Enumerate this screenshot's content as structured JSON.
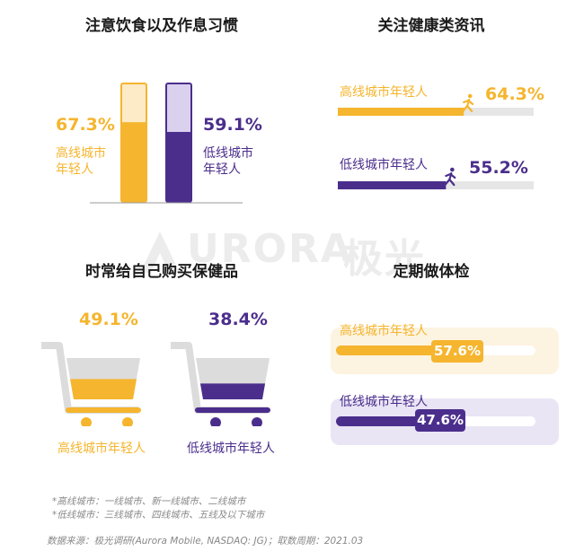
{
  "watermark": {
    "brand": "URORA",
    "cn": "极光"
  },
  "colors": {
    "orange": "#f5b52e",
    "orange_light": "#fdebc8",
    "purple": "#4b2e8c",
    "purple_light": "#d9d1ee",
    "track": "#e6e6e6"
  },
  "panels": {
    "diet": {
      "title": "注意饮食以及作息习惯"
    },
    "news": {
      "title": "关注健康类资讯"
    },
    "supplements": {
      "title": "时常给自己购买保健品"
    },
    "checkup": {
      "title": "定期做体检"
    }
  },
  "chart_data": [
    {
      "type": "bar",
      "title": "注意饮食以及作息习惯",
      "series": [
        {
          "name": "高线城市年轻人",
          "value": 67.3,
          "label": "67.3%"
        },
        {
          "name": "低线城市年轻人",
          "value": 59.1,
          "label": "59.1%"
        }
      ],
      "ylim": [
        0,
        100
      ],
      "labels": {
        "high_line1": "高线城市",
        "high_line2": "年轻人",
        "low_line1": "低线城市",
        "low_line2": "年轻人"
      }
    },
    {
      "type": "bar",
      "title": "关注健康类资讯",
      "orientation": "horizontal",
      "series": [
        {
          "name": "高线城市年轻人",
          "value": 64.3,
          "label": "64.3%"
        },
        {
          "name": "低线城市年轻人",
          "value": 55.2,
          "label": "55.2%"
        }
      ],
      "ylim": [
        0,
        100
      ]
    },
    {
      "type": "bar",
      "title": "时常给自己购买保健品",
      "style": "shopping-cart-fill",
      "series": [
        {
          "name": "高线城市年轻人",
          "value": 49.1,
          "label": "49.1%"
        },
        {
          "name": "低线城市年轻人",
          "value": 38.4,
          "label": "38.4%"
        }
      ],
      "ylim": [
        0,
        100
      ]
    },
    {
      "type": "bar",
      "title": "定期做体检",
      "orientation": "horizontal",
      "series": [
        {
          "name": "高线城市年轻人",
          "value": 57.6,
          "label": "57.6%"
        },
        {
          "name": "低线城市年轻人",
          "value": 47.6,
          "label": "47.6%"
        }
      ],
      "ylim": [
        0,
        100
      ]
    }
  ],
  "notes": {
    "line1": "*高线城市：一线城市、新一线城市、二线城市",
    "line2": "*低线城市：三线城市、四线城市、五线及以下城市",
    "source": "数据来源：极光调研(Aurora Mobile, NASDAQ: JG)；取数周期：2021.03"
  }
}
